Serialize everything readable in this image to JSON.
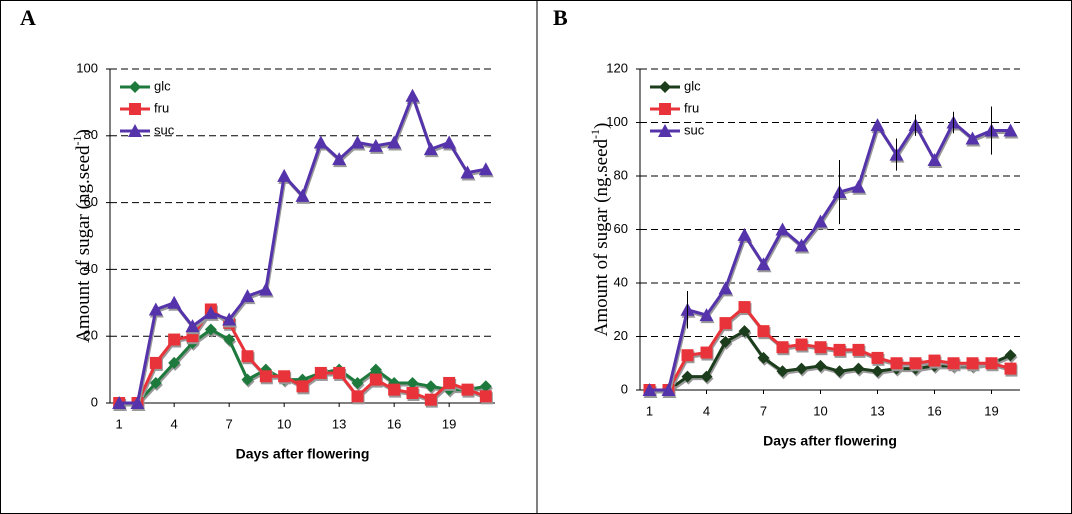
{
  "chart_data": [
    {
      "type": "line",
      "panel": "A",
      "x_label": "Days after flowering",
      "y_label": [
        "Amount of sugar (ng.seed",
        "-1",
        ")"
      ],
      "x": [
        1,
        2,
        3,
        4,
        5,
        6,
        7,
        8,
        9,
        10,
        11,
        12,
        13,
        14,
        15,
        16,
        17,
        18,
        19,
        20,
        21
      ],
      "xlim": [
        0.5,
        21.5
      ],
      "xticks": [
        1,
        4,
        7,
        10,
        13,
        16,
        19
      ],
      "ylim": [
        0,
        100
      ],
      "yticks": [
        0,
        20,
        40,
        60,
        80,
        100
      ],
      "grid": true,
      "legend": "upper left",
      "series": [
        {
          "name": "glc",
          "color": "#1d7a3c",
          "marker": "diamond",
          "values": [
            0,
            0,
            6,
            12,
            18,
            22,
            19,
            7,
            10,
            7,
            7,
            9,
            10,
            6,
            10,
            6,
            6,
            5,
            4,
            4,
            5
          ]
        },
        {
          "name": "fru",
          "color": "#e8333a",
          "marker": "square",
          "values": [
            0,
            0,
            12,
            19,
            20,
            28,
            24,
            14,
            8,
            8,
            5,
            9,
            9,
            2,
            7,
            4,
            3,
            1,
            6,
            4,
            2
          ]
        },
        {
          "name": "suc",
          "color": "#5533aa",
          "marker": "triangle",
          "values": [
            0,
            0,
            28,
            30,
            23,
            27,
            25,
            32,
            34,
            68,
            62,
            78,
            73,
            78,
            77,
            78,
            92,
            76,
            78,
            69,
            70
          ]
        }
      ]
    },
    {
      "type": "line",
      "panel": "B",
      "x_label": "Days after flowering",
      "y_label": [
        "Amount of sugar (ng.seed",
        "-1",
        ")"
      ],
      "x": [
        1,
        2,
        3,
        4,
        5,
        6,
        7,
        8,
        9,
        10,
        11,
        12,
        13,
        14,
        15,
        16,
        17,
        18,
        19,
        20
      ],
      "xlim": [
        0.5,
        20.5
      ],
      "xticks": [
        1,
        4,
        7,
        10,
        13,
        16,
        19
      ],
      "ylim": [
        0,
        120
      ],
      "yticks": [
        0,
        20,
        40,
        60,
        80,
        100,
        120
      ],
      "grid": true,
      "legend": "upper left",
      "series": [
        {
          "name": "glc",
          "color": "#1c3d1c",
          "marker": "diamond",
          "values": [
            0,
            0,
            5,
            5,
            18,
            22,
            12,
            7,
            8,
            9,
            7,
            8,
            7,
            8,
            8,
            9,
            9,
            9,
            10,
            13
          ]
        },
        {
          "name": "fru",
          "color": "#e8333a",
          "marker": "square",
          "values": [
            0,
            0,
            13,
            14,
            25,
            31,
            22,
            16,
            17,
            16,
            15,
            15,
            12,
            10,
            10,
            11,
            10,
            10,
            10,
            8
          ]
        },
        {
          "name": "suc",
          "color": "#5533aa",
          "marker": "triangle",
          "values": [
            0,
            0,
            30,
            28,
            38,
            58,
            47,
            60,
            54,
            63,
            74,
            76,
            99,
            88,
            99,
            86,
            100,
            94,
            97,
            97
          ],
          "errors": [
            null,
            null,
            7,
            null,
            null,
            null,
            null,
            null,
            null,
            null,
            12,
            null,
            null,
            6,
            4,
            null,
            4,
            null,
            9,
            null
          ]
        }
      ]
    }
  ]
}
